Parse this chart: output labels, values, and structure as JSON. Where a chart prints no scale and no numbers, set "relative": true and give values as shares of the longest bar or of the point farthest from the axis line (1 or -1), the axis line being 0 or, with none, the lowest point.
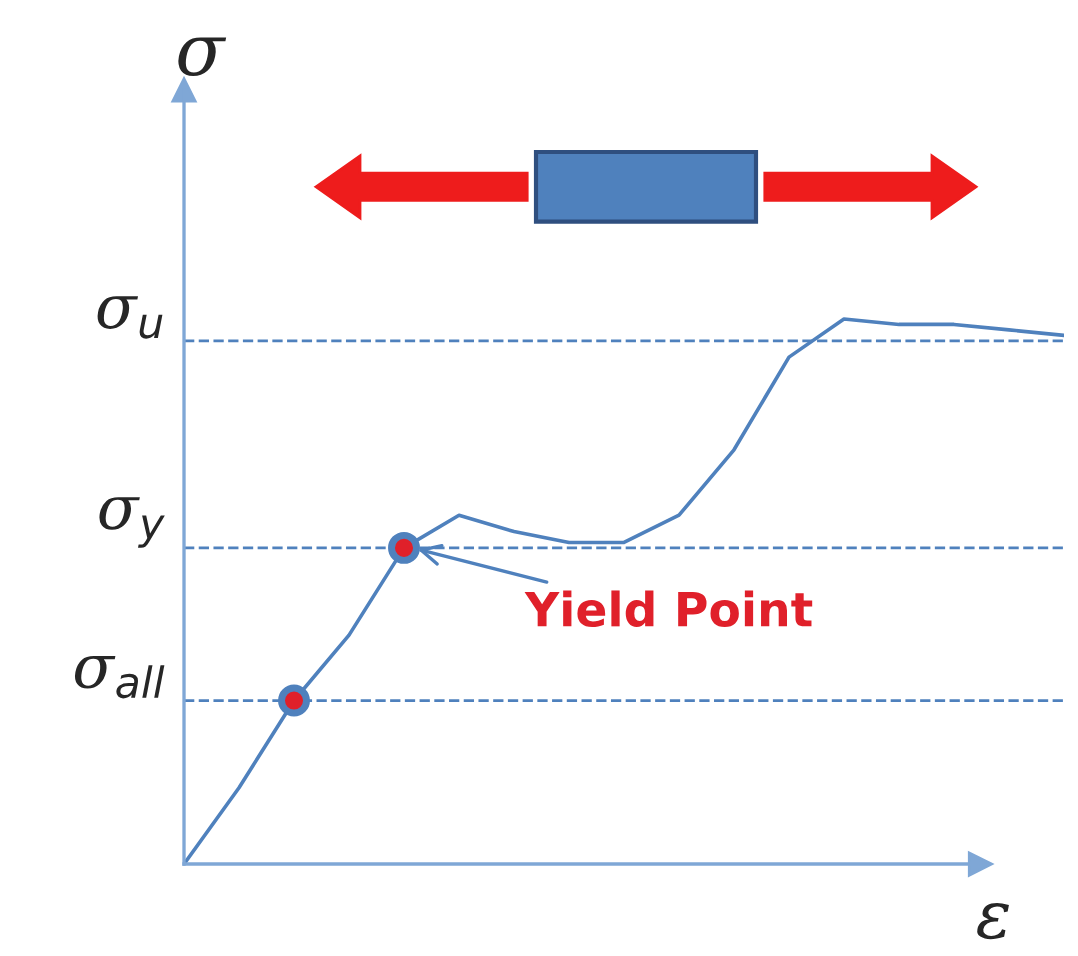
{
  "chart_data": {
    "type": "line",
    "relative": true,
    "xlabel": "ε",
    "ylabel": "σ",
    "categories": [
      null,
      null,
      null,
      null,
      null,
      null,
      null,
      null,
      null,
      null,
      null,
      null,
      null,
      null,
      null,
      null,
      null
    ],
    "series": [
      {
        "color": "#4f81bd",
        "values": [
          0,
          0.14,
          0.3,
          0.42,
          0.58,
          0.64,
          0.61,
          0.59,
          0.59,
          0.64,
          0.76,
          0.93,
          1.0,
          0.99,
          0.99,
          0.98,
          0.97
        ]
      }
    ],
    "ref_lines": [
      {
        "axis": "y",
        "value": 0.96,
        "label": "σ$_{u}$",
        "color": "#4f81bd",
        "line_style": "dashed"
      },
      {
        "axis": "y",
        "value": 0.58,
        "label": "σ$_{y}$",
        "color": "#4f81bd",
        "line_style": "dashed"
      },
      {
        "axis": "y",
        "value": 0.3,
        "label": "σ$_{all}$",
        "color": "#4f81bd",
        "line_style": "dashed"
      }
    ],
    "annotations": [
      {
        "text": "Yield Point",
        "y": 0.58
      }
    ]
  }
}
